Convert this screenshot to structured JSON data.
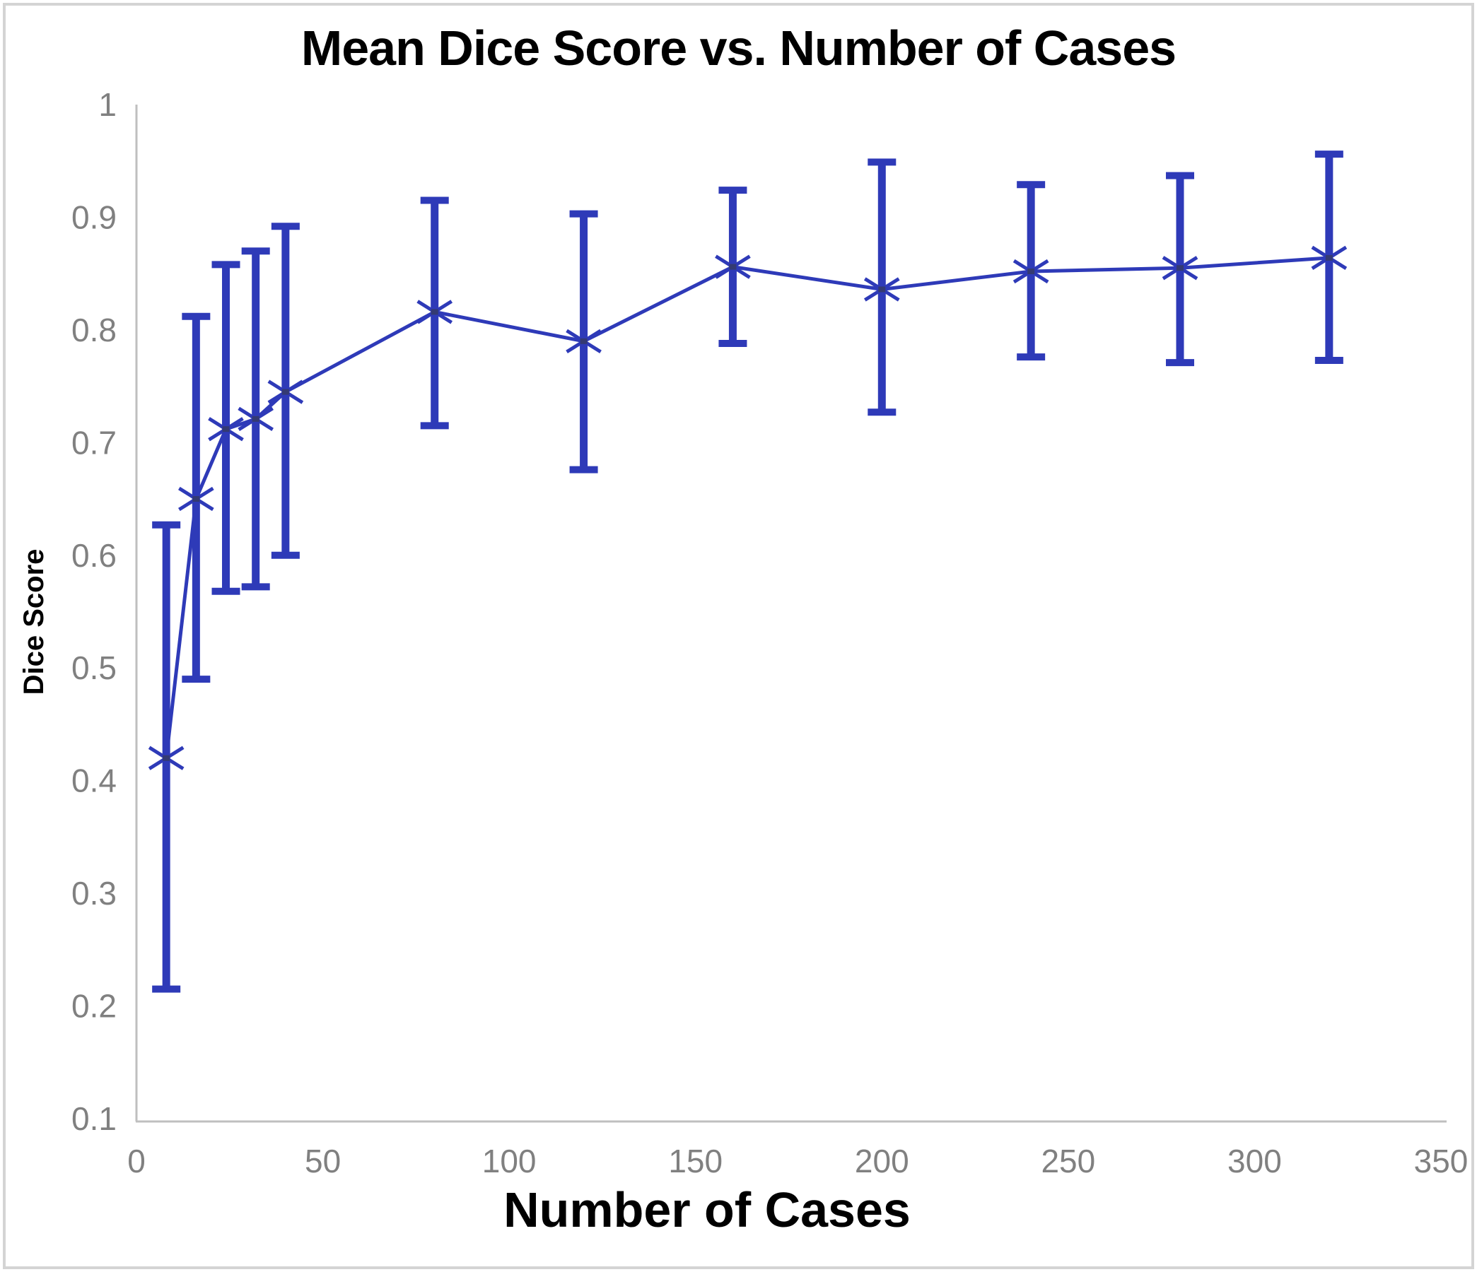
{
  "figure": {
    "title": "Mean Dice Score vs. Number of Cases",
    "x_axis_label": "Number of Cases",
    "y_axis_label": "Dice Score"
  },
  "chart_data": {
    "type": "line",
    "title": "Mean Dice Score vs. Number of Cases",
    "xlabel": "Number of Cases",
    "ylabel": "Dice Score",
    "x": [
      8,
      16,
      24,
      32,
      40,
      80,
      120,
      160,
      200,
      240,
      280,
      320
    ],
    "series": [
      {
        "name": "Mean Dice Score",
        "values": [
          0.42,
          0.65,
          0.712,
          0.721,
          0.745,
          0.816,
          0.79,
          0.856,
          0.836,
          0.852,
          0.855,
          0.864
        ],
        "error_low": [
          0.215,
          0.49,
          0.568,
          0.572,
          0.6,
          0.715,
          0.676,
          0.788,
          0.727,
          0.776,
          0.771,
          0.773
        ],
        "error_high": [
          0.627,
          0.812,
          0.858,
          0.87,
          0.892,
          0.915,
          0.903,
          0.924,
          0.949,
          0.929,
          0.937,
          0.956
        ]
      }
    ],
    "xlim": [
      0,
      350
    ],
    "ylim": [
      0.1,
      1.0
    ],
    "x_ticks": [
      0,
      50,
      100,
      150,
      200,
      250,
      300,
      350
    ],
    "y_ticks": [
      1,
      0.9,
      0.8,
      0.7,
      0.6,
      0.5,
      0.4,
      0.3,
      0.2,
      0.1
    ],
    "grid": false,
    "legend_position": "none",
    "marker": "x-with-error-bars",
    "colors": {
      "series_line": "#2e3ab8",
      "error_bar": "#2e3ab8",
      "axis_line": "#bfbfbf",
      "tick_label": "#808080",
      "title_text": "#000000",
      "frame_border": "#d4d4d4"
    }
  }
}
